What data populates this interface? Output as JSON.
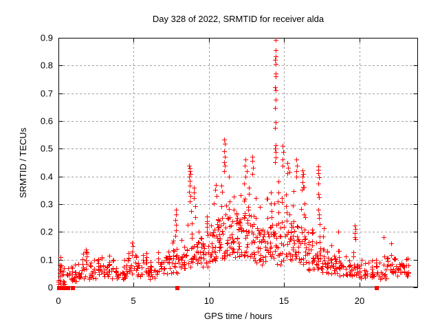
{
  "chart_data": {
    "type": "scatter",
    "title": "Day 328 of 2022, SRMTID for receiver alda",
    "xlabel": "GPS time / hours",
    "ylabel": "SRMTID / TECUs",
    "xlim": [
      0,
      23.9
    ],
    "ylim": [
      0,
      0.9
    ],
    "xticks": [
      0,
      5,
      10,
      15,
      20
    ],
    "xtick_labels": [
      "0",
      "5",
      "10",
      "15",
      "20"
    ],
    "yticks": [
      0,
      0.1,
      0.2,
      0.3,
      0.4,
      0.5,
      0.6,
      0.7,
      0.8,
      0.9
    ],
    "ytick_labels": [
      "0",
      "0.1",
      "0.2",
      "0.3",
      "0.4",
      "0.5",
      "0.6",
      "0.7",
      "0.8",
      "0.9"
    ],
    "grid": true,
    "legend": "none",
    "marker": {
      "shape": "plus",
      "size": 7
    },
    "zero_marker": {
      "shape": "filled-square",
      "size": 6
    },
    "colors": {
      "marker": "#ff0000",
      "grid": "#a0a0a0",
      "border": "#000000",
      "background": "#ffffff",
      "text": "#000000"
    },
    "band_envelope_comment": "dense scatter cloud read off chart: [x_bin_start(0.5h wide), y_lower, y_dense_top, y_sparse_top, approx_point_count]",
    "band_envelope": [
      [
        0.0,
        0.01,
        0.065,
        0.115,
        22
      ],
      [
        0.5,
        0.02,
        0.06,
        0.095,
        14
      ],
      [
        1.0,
        0.02,
        0.07,
        0.1,
        16
      ],
      [
        1.5,
        0.03,
        0.08,
        0.135,
        16
      ],
      [
        2.0,
        0.03,
        0.075,
        0.11,
        16
      ],
      [
        2.5,
        0.03,
        0.08,
        0.12,
        16
      ],
      [
        3.0,
        0.035,
        0.08,
        0.12,
        16
      ],
      [
        3.5,
        0.03,
        0.07,
        0.11,
        15
      ],
      [
        4.0,
        0.03,
        0.07,
        0.11,
        15
      ],
      [
        4.5,
        0.035,
        0.08,
        0.13,
        16
      ],
      [
        5.0,
        0.04,
        0.085,
        0.125,
        16
      ],
      [
        5.5,
        0.04,
        0.09,
        0.13,
        16
      ],
      [
        6.0,
        0.03,
        0.08,
        0.12,
        16
      ],
      [
        6.5,
        0.04,
        0.09,
        0.13,
        16
      ],
      [
        7.0,
        0.05,
        0.1,
        0.16,
        16
      ],
      [
        7.5,
        0.05,
        0.11,
        0.22,
        18
      ],
      [
        8.0,
        0.06,
        0.12,
        0.2,
        18
      ],
      [
        8.5,
        0.07,
        0.16,
        0.3,
        20
      ],
      [
        9.0,
        0.08,
        0.18,
        0.33,
        20
      ],
      [
        9.5,
        0.07,
        0.15,
        0.26,
        20
      ],
      [
        10.0,
        0.09,
        0.2,
        0.32,
        24
      ],
      [
        10.5,
        0.1,
        0.24,
        0.38,
        26
      ],
      [
        11.0,
        0.1,
        0.26,
        0.42,
        26
      ],
      [
        11.5,
        0.1,
        0.24,
        0.38,
        26
      ],
      [
        12.0,
        0.1,
        0.25,
        0.4,
        26
      ],
      [
        12.5,
        0.1,
        0.26,
        0.42,
        26
      ],
      [
        13.0,
        0.08,
        0.22,
        0.36,
        24
      ],
      [
        13.5,
        0.08,
        0.2,
        0.33,
        24
      ],
      [
        14.0,
        0.1,
        0.24,
        0.42,
        26
      ],
      [
        14.5,
        0.08,
        0.22,
        0.4,
        24
      ],
      [
        15.0,
        0.1,
        0.24,
        0.42,
        24
      ],
      [
        15.5,
        0.1,
        0.22,
        0.4,
        24
      ],
      [
        16.0,
        0.08,
        0.2,
        0.38,
        24
      ],
      [
        16.5,
        0.06,
        0.15,
        0.25,
        22
      ],
      [
        17.0,
        0.06,
        0.14,
        0.3,
        20
      ],
      [
        17.5,
        0.05,
        0.12,
        0.22,
        20
      ],
      [
        18.0,
        0.05,
        0.1,
        0.16,
        18
      ],
      [
        18.5,
        0.04,
        0.09,
        0.14,
        16
      ],
      [
        19.0,
        0.04,
        0.08,
        0.13,
        16
      ],
      [
        19.5,
        0.04,
        0.08,
        0.14,
        16
      ],
      [
        20.0,
        0.03,
        0.06,
        0.1,
        14
      ],
      [
        20.5,
        0.03,
        0.06,
        0.1,
        14
      ],
      [
        21.0,
        0.03,
        0.07,
        0.11,
        14
      ],
      [
        21.5,
        0.03,
        0.07,
        0.12,
        14
      ],
      [
        22.0,
        0.04,
        0.08,
        0.13,
        16
      ],
      [
        22.5,
        0.04,
        0.08,
        0.13,
        18
      ],
      [
        23.0,
        0.03,
        0.07,
        0.12,
        10
      ]
    ],
    "outlier_points_comment": "individually visible tall spike points [x,y]",
    "outlier_points": [
      [
        14.42,
        0.893
      ],
      [
        14.42,
        0.855
      ],
      [
        14.44,
        0.832
      ],
      [
        14.4,
        0.82
      ],
      [
        14.43,
        0.806
      ],
      [
        14.42,
        0.772
      ],
      [
        14.45,
        0.76
      ],
      [
        14.4,
        0.721
      ],
      [
        14.42,
        0.712
      ],
      [
        14.44,
        0.678
      ],
      [
        14.4,
        0.648
      ],
      [
        14.43,
        0.596
      ],
      [
        14.41,
        0.574
      ],
      [
        14.45,
        0.512
      ],
      [
        14.4,
        0.5
      ],
      [
        14.42,
        0.488
      ],
      [
        14.44,
        0.468
      ],
      [
        14.41,
        0.452
      ],
      [
        11.0,
        0.533
      ],
      [
        11.04,
        0.518
      ],
      [
        11.0,
        0.492
      ],
      [
        11.05,
        0.47
      ],
      [
        11.02,
        0.452
      ],
      [
        11.08,
        0.438
      ],
      [
        11.0,
        0.42
      ],
      [
        8.7,
        0.44
      ],
      [
        8.75,
        0.43
      ],
      [
        8.72,
        0.42
      ],
      [
        8.78,
        0.408
      ],
      [
        8.7,
        0.398
      ],
      [
        8.75,
        0.385
      ],
      [
        8.72,
        0.368
      ],
      [
        8.7,
        0.345
      ],
      [
        8.76,
        0.33
      ],
      [
        8.73,
        0.31
      ],
      [
        12.45,
        0.46
      ],
      [
        12.4,
        0.44
      ],
      [
        12.5,
        0.42
      ],
      [
        12.45,
        0.4
      ],
      [
        12.9,
        0.47
      ],
      [
        12.88,
        0.455
      ],
      [
        12.92,
        0.432
      ],
      [
        12.9,
        0.41
      ],
      [
        10.45,
        0.37
      ],
      [
        10.4,
        0.352
      ],
      [
        10.5,
        0.33
      ],
      [
        14.9,
        0.51
      ],
      [
        14.95,
        0.488
      ],
      [
        14.9,
        0.462
      ],
      [
        14.92,
        0.44
      ],
      [
        15.2,
        0.45
      ],
      [
        15.25,
        0.432
      ],
      [
        15.2,
        0.412
      ],
      [
        15.8,
        0.46
      ],
      [
        15.85,
        0.44
      ],
      [
        15.8,
        0.42
      ],
      [
        15.82,
        0.4
      ],
      [
        16.2,
        0.422
      ],
      [
        16.25,
        0.41
      ],
      [
        16.2,
        0.398
      ],
      [
        16.22,
        0.38
      ],
      [
        16.25,
        0.362
      ],
      [
        17.26,
        0.436
      ],
      [
        17.28,
        0.424
      ],
      [
        17.26,
        0.412
      ],
      [
        17.3,
        0.397
      ],
      [
        17.28,
        0.375
      ],
      [
        17.26,
        0.337
      ],
      [
        17.3,
        0.325
      ],
      [
        17.28,
        0.28
      ],
      [
        17.32,
        0.262
      ],
      [
        17.3,
        0.25
      ],
      [
        19.7,
        0.223
      ],
      [
        19.72,
        0.21
      ],
      [
        19.68,
        0.195
      ],
      [
        19.7,
        0.182
      ],
      [
        19.72,
        0.174
      ],
      [
        18.6,
        0.2
      ],
      [
        7.8,
        0.28
      ],
      [
        7.82,
        0.262
      ],
      [
        7.78,
        0.243
      ],
      [
        7.8,
        0.225
      ],
      [
        7.82,
        0.205
      ],
      [
        7.78,
        0.185
      ],
      [
        9.0,
        0.36
      ],
      [
        9.02,
        0.342
      ],
      [
        8.98,
        0.322
      ],
      [
        21.6,
        0.18
      ],
      [
        22.1,
        0.158
      ],
      [
        4.9,
        0.162
      ],
      [
        4.92,
        0.15
      ],
      [
        1.85,
        0.136
      ]
    ],
    "zero_square_points_x": [
      0.05,
      0.3,
      0.55,
      0.65,
      0.95,
      7.9,
      21.15
    ]
  }
}
